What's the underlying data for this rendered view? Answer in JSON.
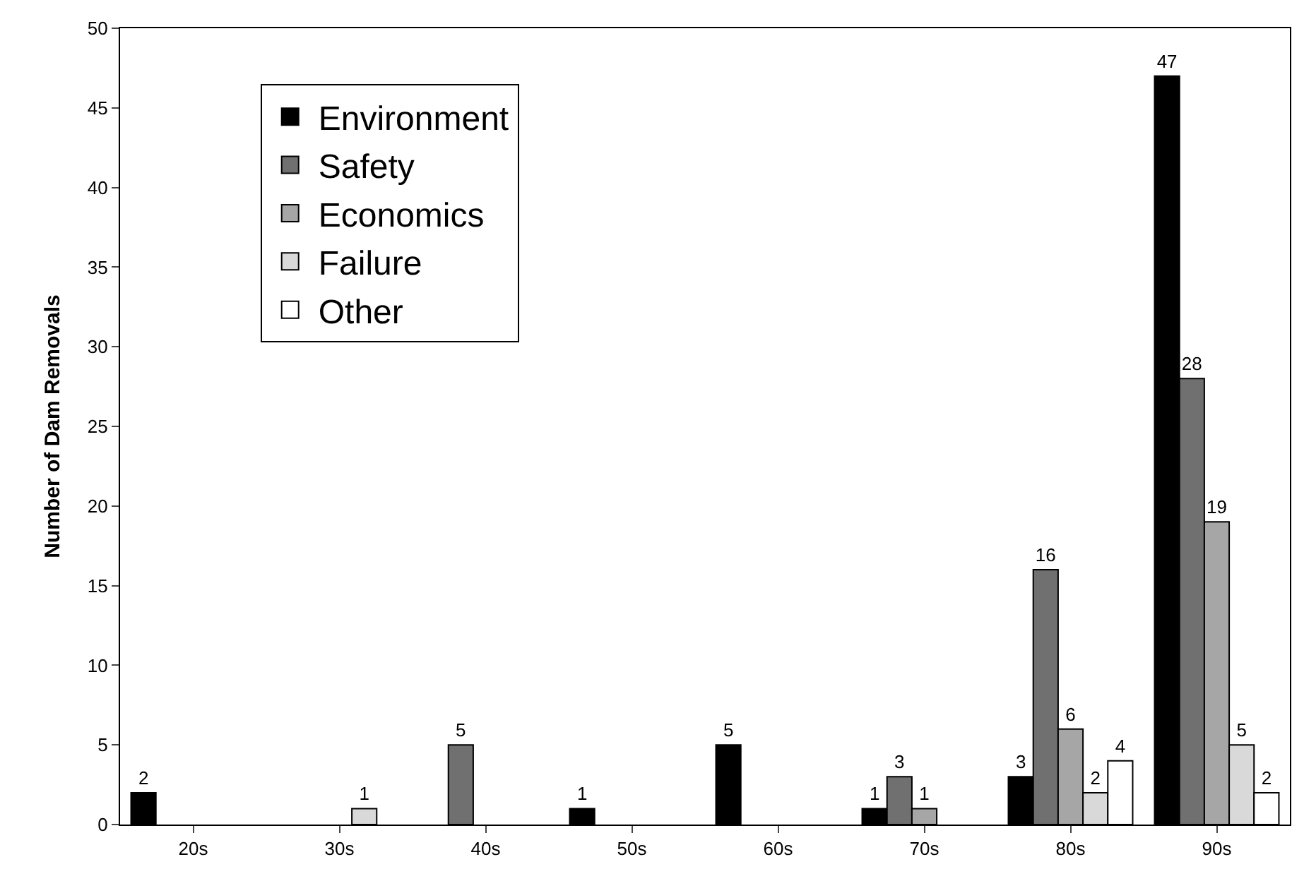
{
  "chart_data": {
    "type": "bar",
    "ylabel": "Number of Dam Removals",
    "categories": [
      "20s",
      "30s",
      "40s",
      "50s",
      "60s",
      "70s",
      "80s",
      "90s"
    ],
    "series": [
      {
        "name": "Environment",
        "color": "#000000",
        "values": [
          2,
          null,
          null,
          1,
          5,
          1,
          3,
          47
        ],
        "value_labels": [
          "2",
          null,
          null,
          "1",
          "5",
          "1",
          "3",
          "47"
        ]
      },
      {
        "name": "Safety",
        "color": "#707070",
        "values": [
          null,
          null,
          5,
          null,
          null,
          3,
          16,
          28
        ],
        "value_labels": [
          null,
          null,
          "5",
          null,
          null,
          "3",
          "16",
          "28"
        ]
      },
      {
        "name": "Economics",
        "color": "#a6a6a6",
        "values": [
          null,
          null,
          null,
          null,
          null,
          1,
          6,
          19
        ],
        "value_labels": [
          null,
          null,
          null,
          null,
          null,
          "1",
          "6",
          "19"
        ]
      },
      {
        "name": "Failure",
        "color": "#d9d9d9",
        "values": [
          null,
          1,
          null,
          null,
          null,
          null,
          2,
          5
        ],
        "value_labels": [
          null,
          "1",
          null,
          null,
          null,
          null,
          "2",
          "5"
        ]
      },
      {
        "name": "Other",
        "color": "#ffffff",
        "values": [
          null,
          null,
          null,
          null,
          null,
          null,
          4,
          2
        ],
        "value_labels": [
          null,
          null,
          null,
          null,
          null,
          null,
          "4",
          "2"
        ]
      }
    ],
    "ylim": [
      0,
      50
    ],
    "yticks": [
      0,
      5,
      10,
      15,
      20,
      25,
      30,
      35,
      40,
      45,
      50
    ],
    "grid": false,
    "legend": "top left"
  }
}
